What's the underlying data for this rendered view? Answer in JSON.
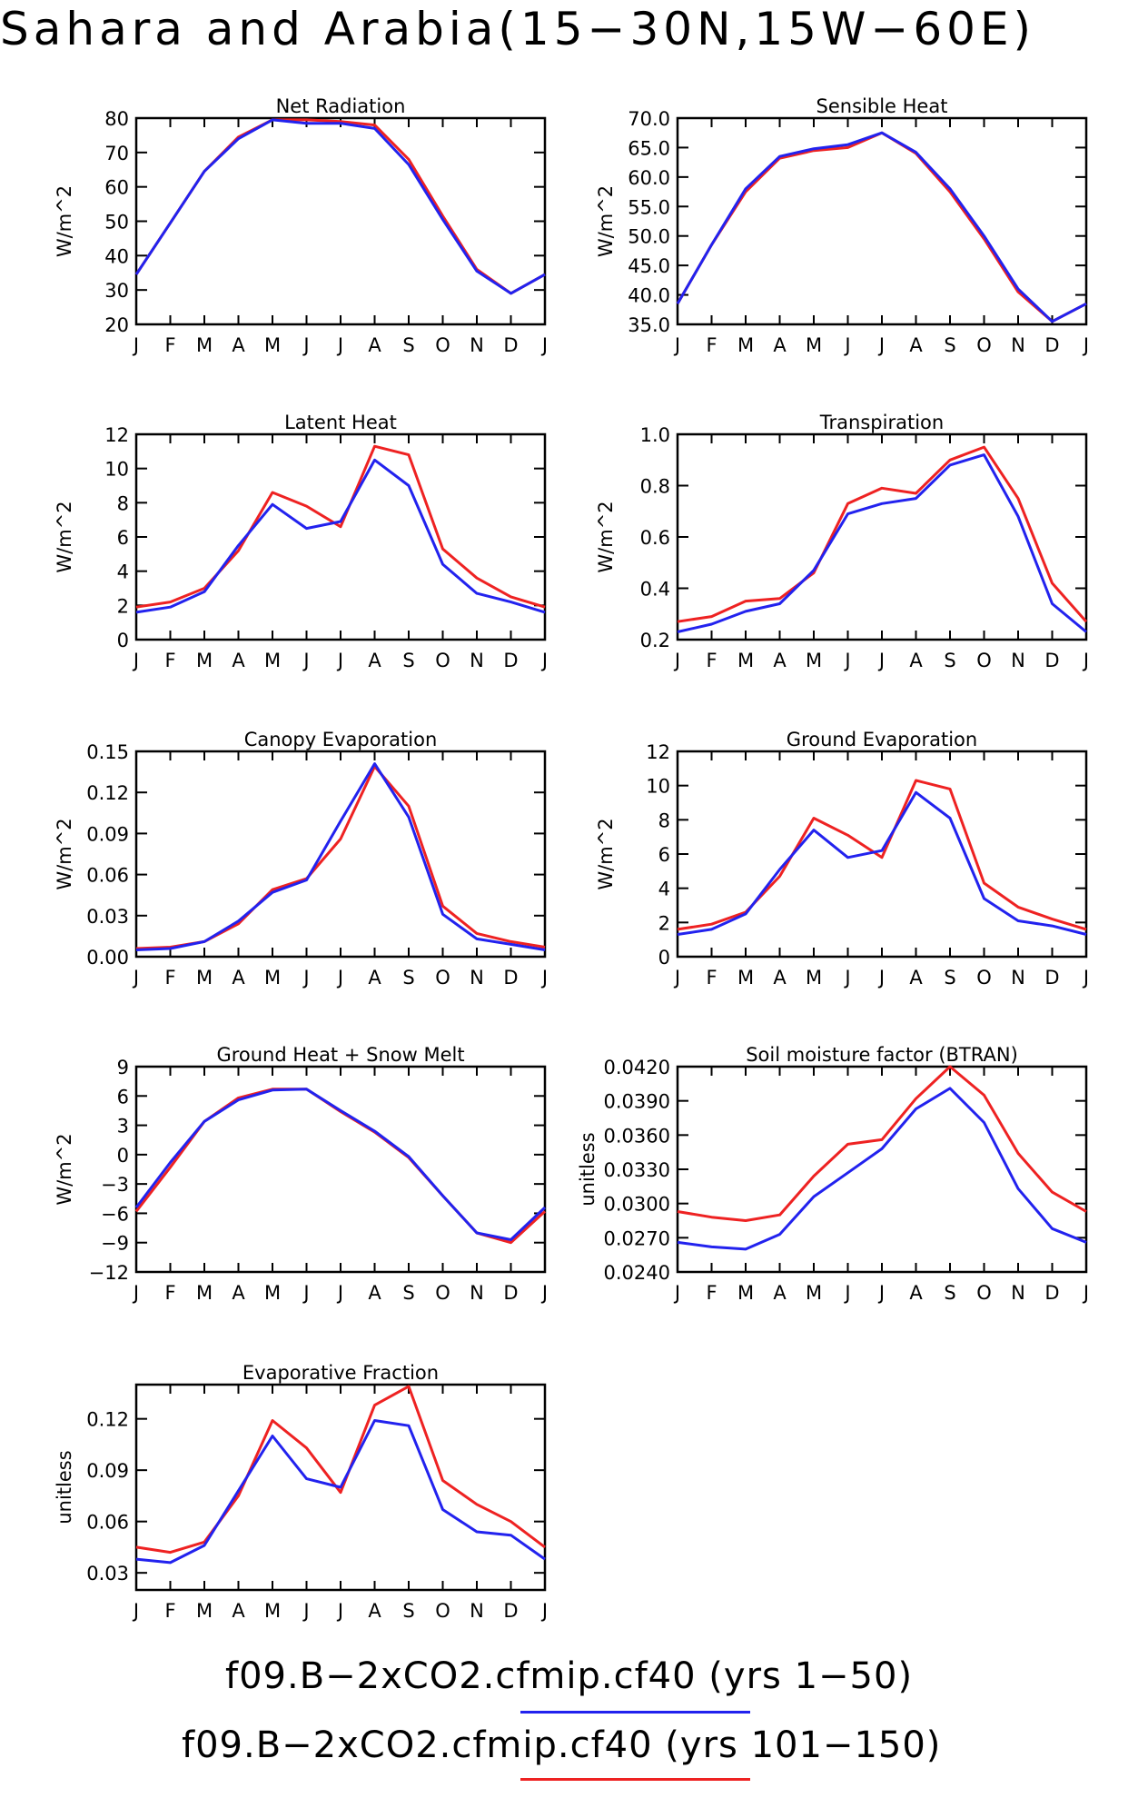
{
  "page": {
    "title": "Sahara and Arabia(15−30N,15W−60E)"
  },
  "legend": [
    {
      "label": "f09.B−2xCO2.cfmip.cf40 (yrs 1−50)",
      "color": "#2222ee"
    },
    {
      "label": "f09.B−2xCO2.cfmip.cf40 (yrs 101−150)",
      "color": "#ee2222"
    }
  ],
  "chart_data": [
    {
      "type": "line",
      "title": "Net Radiation",
      "ylabel": "W/m^2",
      "categories": [
        "J",
        "F",
        "M",
        "A",
        "M",
        "J",
        "J",
        "A",
        "S",
        "O",
        "N",
        "D",
        "J"
      ],
      "ylim": [
        20,
        80
      ],
      "yticks": [
        "20",
        "30",
        "40",
        "50",
        "60",
        "70",
        "80"
      ],
      "series": [
        {
          "color": "#ee2222",
          "values": [
            34.5,
            49.5,
            64.5,
            74.5,
            79.5,
            79.5,
            79.0,
            78.0,
            68.0,
            51.5,
            36.0,
            29.0,
            34.5
          ]
        },
        {
          "color": "#2222ee",
          "values": [
            34.5,
            49.5,
            64.5,
            74.0,
            79.5,
            78.5,
            78.5,
            77.0,
            66.5,
            50.5,
            35.5,
            29.0,
            34.5
          ]
        }
      ]
    },
    {
      "type": "line",
      "title": "Sensible Heat",
      "ylabel": "W/m^2",
      "categories": [
        "J",
        "F",
        "M",
        "A",
        "M",
        "J",
        "J",
        "A",
        "S",
        "O",
        "N",
        "D",
        "J"
      ],
      "ylim": [
        35,
        70
      ],
      "yticks": [
        "35.0",
        "40.0",
        "45.0",
        "50.0",
        "55.0",
        "60.0",
        "65.0",
        "70.0"
      ],
      "series": [
        {
          "color": "#ee2222",
          "values": [
            38.5,
            48.5,
            57.5,
            63.2,
            64.5,
            65.0,
            67.5,
            64.0,
            57.5,
            49.5,
            40.5,
            35.5,
            38.5
          ]
        },
        {
          "color": "#2222ee",
          "values": [
            38.5,
            48.5,
            58.0,
            63.5,
            64.8,
            65.5,
            67.5,
            64.2,
            58.0,
            50.0,
            41.0,
            35.5,
            38.5
          ]
        }
      ]
    },
    {
      "type": "line",
      "title": "Latent Heat",
      "ylabel": "W/m^2",
      "categories": [
        "J",
        "F",
        "M",
        "A",
        "M",
        "J",
        "J",
        "A",
        "S",
        "O",
        "N",
        "D",
        "J"
      ],
      "ylim": [
        0,
        12
      ],
      "yticks": [
        "0",
        "2",
        "4",
        "6",
        "8",
        "10",
        "12"
      ],
      "series": [
        {
          "color": "#ee2222",
          "values": [
            1.9,
            2.2,
            3.0,
            5.2,
            8.6,
            7.8,
            6.6,
            11.3,
            10.8,
            5.3,
            3.6,
            2.5,
            1.9
          ]
        },
        {
          "color": "#2222ee",
          "values": [
            1.6,
            1.9,
            2.8,
            5.5,
            7.9,
            6.5,
            6.9,
            10.5,
            9.0,
            4.4,
            2.7,
            2.2,
            1.6
          ]
        }
      ]
    },
    {
      "type": "line",
      "title": "Transpiration",
      "ylabel": "W/m^2",
      "categories": [
        "J",
        "F",
        "M",
        "A",
        "M",
        "J",
        "J",
        "A",
        "S",
        "O",
        "N",
        "D",
        "J"
      ],
      "ylim": [
        0.2,
        1.0
      ],
      "yticks": [
        "0.2",
        "0.4",
        "0.6",
        "0.8",
        "1.0"
      ],
      "series": [
        {
          "color": "#ee2222",
          "values": [
            0.27,
            0.29,
            0.35,
            0.36,
            0.46,
            0.73,
            0.79,
            0.77,
            0.9,
            0.95,
            0.75,
            0.42,
            0.27
          ]
        },
        {
          "color": "#2222ee",
          "values": [
            0.23,
            0.26,
            0.31,
            0.34,
            0.47,
            0.69,
            0.73,
            0.75,
            0.88,
            0.92,
            0.68,
            0.34,
            0.23
          ]
        }
      ]
    },
    {
      "type": "line",
      "title": "Canopy Evaporation",
      "ylabel": "W/m^2",
      "categories": [
        "J",
        "F",
        "M",
        "A",
        "M",
        "J",
        "J",
        "A",
        "S",
        "O",
        "N",
        "D",
        "J"
      ],
      "ylim": [
        0,
        0.15
      ],
      "yticks": [
        "0.00",
        "0.03",
        "0.06",
        "0.09",
        "0.12",
        "0.15"
      ],
      "series": [
        {
          "color": "#ee2222",
          "values": [
            0.006,
            0.007,
            0.011,
            0.024,
            0.049,
            0.057,
            0.086,
            0.139,
            0.11,
            0.037,
            0.017,
            0.011,
            0.007
          ]
        },
        {
          "color": "#2222ee",
          "values": [
            0.005,
            0.006,
            0.011,
            0.026,
            0.047,
            0.056,
            0.099,
            0.141,
            0.102,
            0.031,
            0.013,
            0.009,
            0.005
          ]
        }
      ]
    },
    {
      "type": "line",
      "title": "Ground Evaporation",
      "ylabel": "W/m^2",
      "categories": [
        "J",
        "F",
        "M",
        "A",
        "M",
        "J",
        "J",
        "A",
        "S",
        "O",
        "N",
        "D",
        "J"
      ],
      "ylim": [
        0,
        12
      ],
      "yticks": [
        "0",
        "2",
        "4",
        "6",
        "8",
        "10",
        "12"
      ],
      "series": [
        {
          "color": "#ee2222",
          "values": [
            1.6,
            1.9,
            2.6,
            4.7,
            8.1,
            7.1,
            5.8,
            10.3,
            9.8,
            4.3,
            2.9,
            2.2,
            1.6
          ]
        },
        {
          "color": "#2222ee",
          "values": [
            1.3,
            1.6,
            2.5,
            5.1,
            7.4,
            5.8,
            6.2,
            9.6,
            8.1,
            3.4,
            2.1,
            1.8,
            1.3
          ]
        }
      ]
    },
    {
      "type": "line",
      "title": "Ground Heat + Snow Melt",
      "ylabel": "W/m^2",
      "categories": [
        "J",
        "F",
        "M",
        "A",
        "M",
        "J",
        "J",
        "A",
        "S",
        "O",
        "N",
        "D",
        "J"
      ],
      "ylim": [
        -12,
        9
      ],
      "yticks": [
        "−12",
        "−9",
        "−6",
        "−3",
        "0",
        "3",
        "6",
        "9"
      ],
      "series": [
        {
          "color": "#ee2222",
          "values": [
            -5.8,
            -1.3,
            3.4,
            5.8,
            6.7,
            6.7,
            4.4,
            2.3,
            -0.3,
            -4.2,
            -8.0,
            -9.0,
            -5.8
          ]
        },
        {
          "color": "#2222ee",
          "values": [
            -5.4,
            -0.8,
            3.4,
            5.6,
            6.6,
            6.7,
            4.5,
            2.4,
            -0.2,
            -4.2,
            -8.0,
            -8.7,
            -5.4
          ]
        }
      ]
    },
    {
      "type": "line",
      "title": "Soil moisture factor (BTRAN)",
      "ylabel": "unitless",
      "categories": [
        "J",
        "F",
        "M",
        "A",
        "M",
        "J",
        "J",
        "A",
        "S",
        "O",
        "N",
        "D",
        "J"
      ],
      "ylim": [
        0.024,
        0.042
      ],
      "yticks": [
        "0.0240",
        "0.0270",
        "0.0300",
        "0.0330",
        "0.0360",
        "0.0390",
        "0.0420"
      ],
      "series": [
        {
          "color": "#ee2222",
          "values": [
            0.0293,
            0.0288,
            0.0285,
            0.029,
            0.0324,
            0.0352,
            0.0356,
            0.0392,
            0.042,
            0.0395,
            0.0344,
            0.031,
            0.0293
          ]
        },
        {
          "color": "#2222ee",
          "values": [
            0.0266,
            0.0262,
            0.026,
            0.0273,
            0.0306,
            0.0327,
            0.0348,
            0.0383,
            0.0401,
            0.0371,
            0.0313,
            0.0278,
            0.0266
          ]
        }
      ]
    },
    {
      "type": "line",
      "title": "Evaporative Fraction",
      "ylabel": "unitless",
      "categories": [
        "J",
        "F",
        "M",
        "A",
        "M",
        "J",
        "J",
        "A",
        "S",
        "O",
        "N",
        "D",
        "J"
      ],
      "ylim": [
        0.02,
        0.14
      ],
      "yticks": [
        "0.03",
        "0.06",
        "0.09",
        "0.12"
      ],
      "series": [
        {
          "color": "#ee2222",
          "values": [
            0.045,
            0.042,
            0.048,
            0.075,
            0.119,
            0.103,
            0.077,
            0.128,
            0.139,
            0.084,
            0.07,
            0.06,
            0.045
          ]
        },
        {
          "color": "#2222ee",
          "values": [
            0.038,
            0.036,
            0.046,
            0.078,
            0.11,
            0.085,
            0.08,
            0.119,
            0.116,
            0.067,
            0.054,
            0.052,
            0.038
          ]
        }
      ]
    }
  ]
}
